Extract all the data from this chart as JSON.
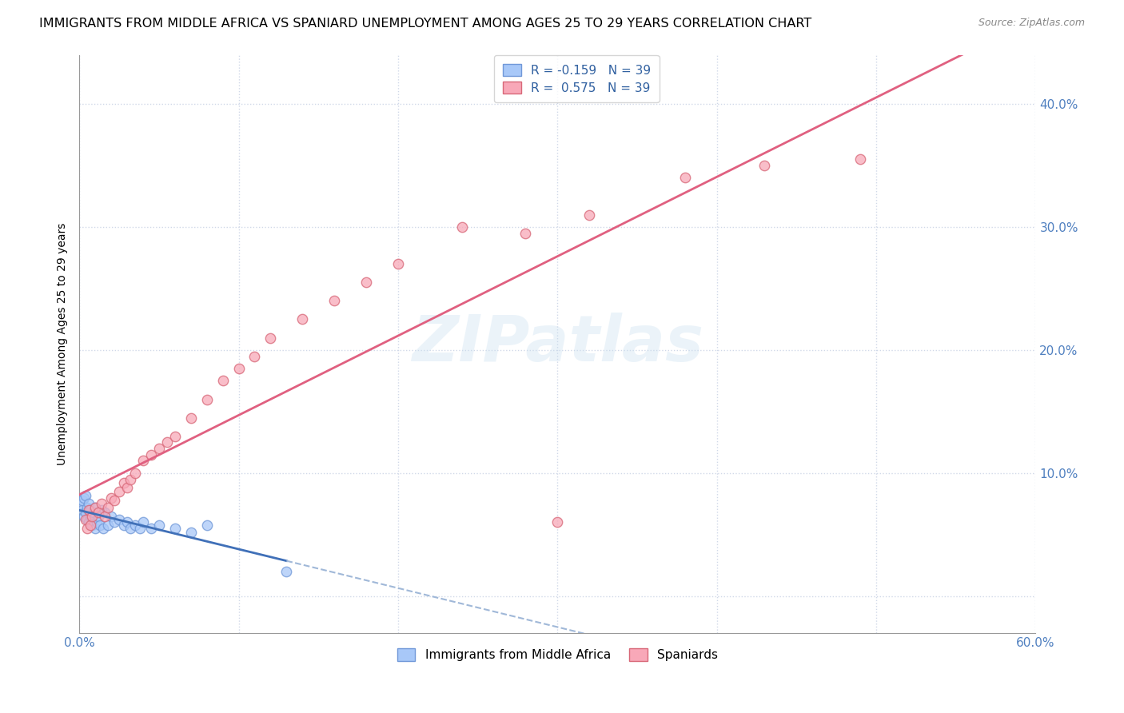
{
  "title": "IMMIGRANTS FROM MIDDLE AFRICA VS SPANIARD UNEMPLOYMENT AMONG AGES 25 TO 29 YEARS CORRELATION CHART",
  "source": "Source: ZipAtlas.com",
  "ylabel_label": "Unemployment Among Ages 25 to 29 years",
  "xlim": [
    0.0,
    0.6
  ],
  "ylim": [
    -0.03,
    0.44
  ],
  "R_blue": -0.159,
  "N_blue": 39,
  "R_pink": 0.575,
  "N_pink": 39,
  "blue_dot_color": "#a8c8f8",
  "blue_dot_edge": "#7098d8",
  "pink_dot_color": "#f8a8b8",
  "pink_dot_edge": "#d86878",
  "blue_line_color": "#4070b8",
  "pink_line_color": "#e06080",
  "blue_dashed_color": "#a0b8d8",
  "watermark": "ZIPatlas",
  "tick_color": "#5080c0",
  "grid_color": "#d0d8e8",
  "legend_label_blue": "Immigrants from Middle Africa",
  "legend_label_pink": "Spaniards",
  "blue_x": [
    0.001,
    0.002,
    0.002,
    0.003,
    0.003,
    0.004,
    0.004,
    0.005,
    0.005,
    0.006,
    0.006,
    0.007,
    0.007,
    0.008,
    0.009,
    0.01,
    0.01,
    0.011,
    0.012,
    0.013,
    0.014,
    0.015,
    0.016,
    0.018,
    0.02,
    0.022,
    0.025,
    0.028,
    0.03,
    0.032,
    0.035,
    0.038,
    0.04,
    0.045,
    0.05,
    0.06,
    0.07,
    0.08,
    0.13
  ],
  "blue_y": [
    0.075,
    0.07,
    0.078,
    0.065,
    0.08,
    0.068,
    0.082,
    0.062,
    0.072,
    0.06,
    0.075,
    0.065,
    0.07,
    0.058,
    0.068,
    0.055,
    0.072,
    0.06,
    0.065,
    0.058,
    0.07,
    0.055,
    0.068,
    0.058,
    0.065,
    0.06,
    0.062,
    0.058,
    0.06,
    0.055,
    0.058,
    0.055,
    0.06,
    0.055,
    0.058,
    0.055,
    0.052,
    0.058,
    0.02
  ],
  "pink_x": [
    0.004,
    0.005,
    0.006,
    0.007,
    0.008,
    0.01,
    0.012,
    0.014,
    0.016,
    0.018,
    0.02,
    0.022,
    0.025,
    0.028,
    0.03,
    0.032,
    0.035,
    0.04,
    0.045,
    0.05,
    0.055,
    0.06,
    0.07,
    0.08,
    0.09,
    0.1,
    0.11,
    0.12,
    0.14,
    0.16,
    0.18,
    0.2,
    0.24,
    0.28,
    0.32,
    0.38,
    0.43,
    0.49,
    0.3
  ],
  "pink_y": [
    0.062,
    0.055,
    0.07,
    0.058,
    0.065,
    0.072,
    0.068,
    0.075,
    0.065,
    0.072,
    0.08,
    0.078,
    0.085,
    0.092,
    0.088,
    0.095,
    0.1,
    0.11,
    0.115,
    0.12,
    0.125,
    0.13,
    0.145,
    0.16,
    0.175,
    0.185,
    0.195,
    0.21,
    0.225,
    0.24,
    0.255,
    0.27,
    0.3,
    0.295,
    0.31,
    0.34,
    0.35,
    0.355,
    0.06
  ]
}
